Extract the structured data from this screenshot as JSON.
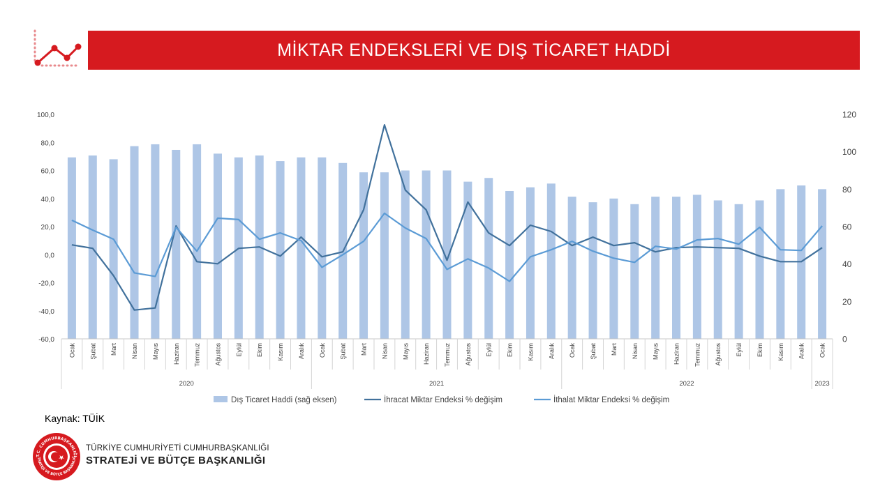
{
  "header": {
    "title": "MİKTAR ENDEKSLERİ VE DIŞ TİCARET HADDİ"
  },
  "colors": {
    "brand_red": "#d61a1f",
    "bar": "#aec6e6",
    "ihracat_line": "#41719c",
    "ithalat_line": "#5b9bd5"
  },
  "chart_data": {
    "type": "bar",
    "categories": [
      "Ocak",
      "Şubat",
      "Mart",
      "Nisan",
      "Mayıs",
      "Haziran",
      "Temmuz",
      "Ağustos",
      "Eylül",
      "Ekim",
      "Kasım",
      "Aralık",
      "Ocak",
      "Şubat",
      "Mart",
      "Nisan",
      "Mayıs",
      "Haziran",
      "Temmuz",
      "Ağustos",
      "Eylül",
      "Ekim",
      "Kasım",
      "Aralık",
      "Ocak",
      "Şubat",
      "Mart",
      "Nisan",
      "Mayıs",
      "Haziran",
      "Temmuz",
      "Ağustos",
      "Eylül",
      "Ekim",
      "Kasım",
      "Aralık",
      "Ocak"
    ],
    "years": [
      {
        "label": "2020",
        "count": 12
      },
      {
        "label": "2021",
        "count": 12
      },
      {
        "label": "2022",
        "count": 12
      },
      {
        "label": "2023",
        "count": 1
      }
    ],
    "left_axis": {
      "min": -60,
      "max": 100,
      "step": 20,
      "ticks": [
        "-60,0",
        "-40,0",
        "-20,0",
        "0,0",
        "20,0",
        "40,0",
        "60,0",
        "80,0",
        "100,0"
      ]
    },
    "right_axis": {
      "min": 0,
      "max": 120,
      "step": 20,
      "ticks": [
        "0",
        "20",
        "40",
        "60",
        "80",
        "100",
        "120"
      ]
    },
    "series": [
      {
        "name": "Dış Ticaret Haddi (sağ eksen)",
        "type": "bar",
        "axis": "right",
        "values": [
          97,
          98,
          96,
          103,
          104,
          101,
          104,
          99,
          97,
          98,
          95,
          97,
          97,
          94,
          89,
          89,
          90,
          90,
          90,
          84,
          86,
          79,
          81,
          83,
          76,
          73,
          75,
          72,
          76,
          76,
          77,
          74,
          72,
          74,
          80,
          82,
          80
        ]
      },
      {
        "name": "İhracat Miktar Endeksi % değişim",
        "type": "line",
        "axis": "left",
        "values": [
          7,
          4.5,
          -15,
          -39.5,
          -38,
          20.5,
          -5,
          -6.5,
          4.5,
          5.5,
          -1,
          12.5,
          -1.5,
          2,
          32,
          92.5,
          46,
          32,
          -4,
          37.5,
          15.5,
          6.5,
          21,
          16.5,
          6.5,
          12.5,
          6.5,
          8.5,
          2,
          5,
          5.5,
          5,
          4.5,
          -1,
          -5,
          -5,
          5
        ]
      },
      {
        "name": "İthalat Miktar Endeksi % değişim",
        "type": "line",
        "axis": "left",
        "values": [
          24.5,
          17.5,
          11,
          -13,
          -15.5,
          19.5,
          2.5,
          26,
          25,
          11,
          15.5,
          10,
          -9,
          0,
          9.5,
          29.5,
          19,
          11.5,
          -10.5,
          -3,
          -9.5,
          -19,
          -1.5,
          3.5,
          9.5,
          2.5,
          -2.5,
          -5.5,
          6,
          4,
          10.5,
          11.5,
          7.5,
          19.5,
          3.5,
          3,
          20.5
        ]
      }
    ],
    "legend_position": "bottom",
    "grid": false
  },
  "footer": {
    "source": "Kaynak: TÜİK",
    "org_line1": "TÜRKİYE CUMHURİYETİ CUMHURBAŞKANLIĞI",
    "org_line2": "STRATEJİ VE BÜTÇE BAŞKANLIĞI",
    "seal_top_text": "T.C. CUMHURBAŞKANLIĞI",
    "seal_bottom_text": "STRATEJİ VE BÜTÇE BAŞKANLIĞI"
  }
}
